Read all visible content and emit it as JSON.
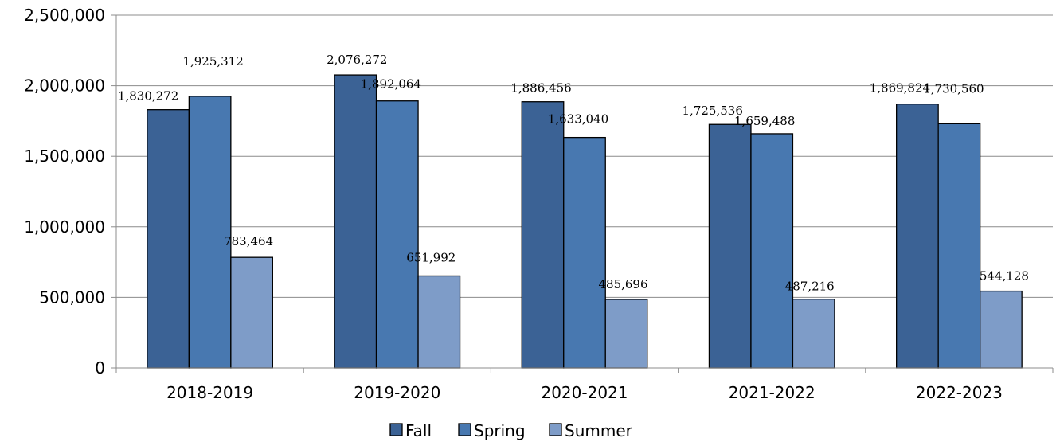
{
  "chart_data": {
    "type": "bar",
    "title": "",
    "xlabel": "",
    "ylabel": "",
    "categories": [
      "2018-2019",
      "2019-2020",
      "2020-2021",
      "2021-2022",
      "2022-2023"
    ],
    "series": [
      {
        "name": "Fall",
        "color": "#3b6295",
        "values": [
          1830272,
          2076272,
          1886456,
          1725536,
          1869824
        ],
        "labels": [
          "1,830,272",
          "2,076,272",
          "1,886,456",
          "1,725,536",
          "1,869,824"
        ]
      },
      {
        "name": "Spring",
        "color": "#4878b0",
        "values": [
          1925312,
          1892064,
          1633040,
          1659488,
          1730560
        ],
        "labels": [
          "1,925,312",
          "1,892,064",
          "1,633,040",
          "1,659,488",
          "1,730,560"
        ]
      },
      {
        "name": "Summer",
        "color": "#7e9cc8",
        "values": [
          783464,
          651992,
          485696,
          487216,
          544128
        ],
        "labels": [
          "783,464",
          "651,992",
          "485,696",
          "487,216",
          "544,128"
        ]
      }
    ],
    "ylim": [
      0,
      2500000
    ],
    "yticks": [
      0,
      500000,
      1000000,
      1500000,
      2000000,
      2500000
    ],
    "ytick_labels": [
      "0",
      "500,000",
      "1,000,000",
      "1,500,000",
      "2,000,000",
      "2,500,000"
    ],
    "grid": true,
    "legend": {
      "position": "bottom",
      "entries": [
        "Fall",
        "Spring",
        "Summer"
      ]
    }
  }
}
